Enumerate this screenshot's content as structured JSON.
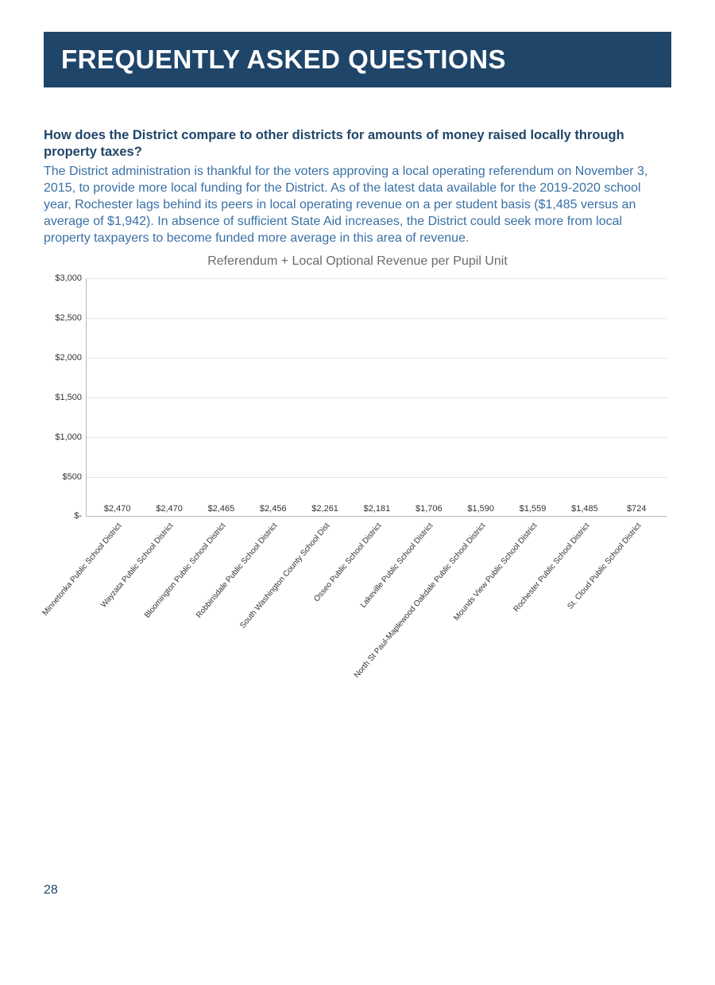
{
  "header": {
    "title": "FREQUENTLY ASKED QUESTIONS"
  },
  "faq": {
    "question": "How does the District compare to other districts for amounts of money raised locally through property taxes?",
    "answer": "The District administration is thankful for the voters approving a local operating referendum on November 3, 2015, to provide more local funding for the District. As of the latest data available for the 2019-2020 school year, Rochester lags behind its peers in local operating revenue on a per student basis ($1,485 versus an average of $1,942). In absence of sufficient State Aid increases, the District could seek more from local property taxpayers to become funded more average in this area of revenue."
  },
  "chart": {
    "type": "bar",
    "title": "Referendum + Local Optional Revenue per Pupil Unit",
    "ylim": [
      0,
      3000
    ],
    "ytick_step": 500,
    "yticks": [
      {
        "v": 0,
        "label": "$-"
      },
      {
        "v": 500,
        "label": "$500"
      },
      {
        "v": 1000,
        "label": "$1,000"
      },
      {
        "v": 1500,
        "label": "$1,500"
      },
      {
        "v": 2000,
        "label": "$2,000"
      },
      {
        "v": 2500,
        "label": "$2,500"
      },
      {
        "v": 3000,
        "label": "$3,000"
      }
    ],
    "bar_color": "#5c9bd1",
    "grid_color": "#e6e6e6",
    "axis_color": "#b7b7b7",
    "background_color": "#ffffff",
    "label_fontsize": 11,
    "data": [
      {
        "name": "Minnetonka Public School District",
        "value": 2470,
        "label": "$2,470"
      },
      {
        "name": "Wayzata Public School District",
        "value": 2470,
        "label": "$2,470"
      },
      {
        "name": "Bloomington Public School District",
        "value": 2465,
        "label": "$2,465"
      },
      {
        "name": "Robbinsdale Public School District",
        "value": 2456,
        "label": "$2,456"
      },
      {
        "name": "South Washington County School Dist",
        "value": 2261,
        "label": "$2,261"
      },
      {
        "name": "Osseo Public School District",
        "value": 2181,
        "label": "$2,181"
      },
      {
        "name": "Lakeville Public School District",
        "value": 1706,
        "label": "$1,706"
      },
      {
        "name": "North St Paul-Maplewood Oakdale Public School District",
        "value": 1590,
        "label": "$1,590"
      },
      {
        "name": "Mounds View Public School District",
        "value": 1559,
        "label": "$1,559"
      },
      {
        "name": "Rochester Public School District",
        "value": 1485,
        "label": "$1,485"
      },
      {
        "name": "St. Cloud Public School District",
        "value": 724,
        "label": "$724"
      }
    ]
  },
  "page_number": "28"
}
